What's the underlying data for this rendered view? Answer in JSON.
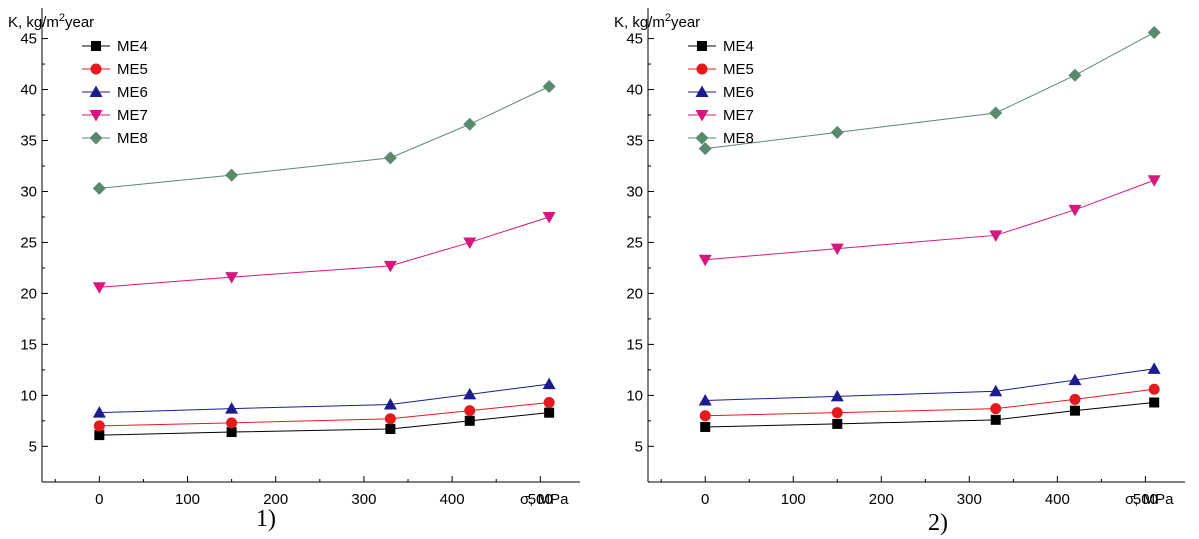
{
  "chart_data": [
    {
      "type": "line",
      "panel_label": "1)",
      "ylabel_base": "K, kg/m",
      "ylabel_sup": "2",
      "ylabel_tail": "year",
      "xlabel": "σ, MPa",
      "xlim": [
        -65,
        545
      ],
      "ylim": [
        1.5,
        48
      ],
      "xticks": [
        0,
        100,
        200,
        300,
        400,
        500
      ],
      "yticks": [
        5,
        10,
        15,
        20,
        25,
        30,
        35,
        40,
        45
      ],
      "grid": false,
      "legend": "top-left",
      "x": [
        0,
        150,
        330,
        420,
        510
      ],
      "series": [
        {
          "name": "ME4",
          "marker": "square",
          "color": "#000000",
          "line": "#000000",
          "values": [
            6.1,
            6.4,
            6.7,
            7.5,
            8.3
          ]
        },
        {
          "name": "ME5",
          "marker": "circle",
          "color": "#e41a1c",
          "line": "#e41a1c",
          "values": [
            7.0,
            7.3,
            7.7,
            8.5,
            9.3
          ]
        },
        {
          "name": "ME6",
          "marker": "triangle-up",
          "color": "#1c1c8c",
          "line": "#1c1c8c",
          "values": [
            8.3,
            8.7,
            9.1,
            10.1,
            11.1
          ]
        },
        {
          "name": "ME7",
          "marker": "triangle-down",
          "color": "#d6187e",
          "line": "#d6187e",
          "values": [
            20.6,
            21.6,
            22.7,
            25.0,
            27.5
          ]
        },
        {
          "name": "ME8",
          "marker": "diamond",
          "color": "#5a8a6e",
          "line": "#5a8a6e",
          "values": [
            30.3,
            31.6,
            33.3,
            36.6,
            40.3
          ]
        }
      ]
    },
    {
      "type": "line",
      "panel_label": "2)",
      "ylabel_base": "K, kg/m",
      "ylabel_sup": "2",
      "ylabel_tail": "year",
      "xlabel": "σ, MPa",
      "xlim": [
        -65,
        545
      ],
      "ylim": [
        1.5,
        48
      ],
      "xticks": [
        0,
        100,
        200,
        300,
        400,
        500
      ],
      "yticks": [
        5,
        10,
        15,
        20,
        25,
        30,
        35,
        40,
        45
      ],
      "grid": false,
      "legend": "top-left",
      "x": [
        0,
        150,
        330,
        420,
        510
      ],
      "series": [
        {
          "name": "ME4",
          "marker": "square",
          "color": "#000000",
          "line": "#000000",
          "values": [
            6.9,
            7.2,
            7.6,
            8.5,
            9.3
          ]
        },
        {
          "name": "ME5",
          "marker": "circle",
          "color": "#e41a1c",
          "line": "#e41a1c",
          "values": [
            8.0,
            8.3,
            8.7,
            9.6,
            10.6
          ]
        },
        {
          "name": "ME6",
          "marker": "triangle-up",
          "color": "#1c1c8c",
          "line": "#1c1c8c",
          "values": [
            9.5,
            9.9,
            10.4,
            11.5,
            12.6
          ]
        },
        {
          "name": "ME7",
          "marker": "triangle-down",
          "color": "#d6187e",
          "line": "#d6187e",
          "values": [
            23.3,
            24.4,
            25.7,
            28.2,
            31.1
          ]
        },
        {
          "name": "ME8",
          "marker": "diamond",
          "color": "#5a8a6e",
          "line": "#5a8a6e",
          "values": [
            34.2,
            35.8,
            37.7,
            41.4,
            45.6
          ]
        }
      ]
    }
  ]
}
